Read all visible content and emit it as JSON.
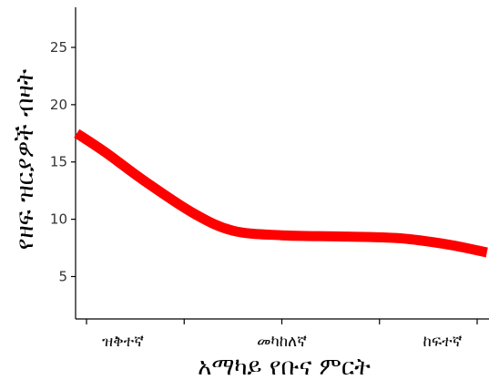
{
  "chart_data": {
    "type": "line",
    "title": "",
    "xlabel": "አማካይ የቡና ምርት",
    "ylabel": "የዘፍ ዝርያዎች ብዛት",
    "categories": [
      "ዝቅተኛ",
      "መካከለኛ",
      "ከፍተኛ"
    ],
    "y_ticks": [
      5,
      10,
      15,
      20,
      25
    ],
    "ylim": [
      1.3,
      28.5
    ],
    "grid": false,
    "legend": "none",
    "series": [
      {
        "color": "#ff0000",
        "x": [
          0.95,
          1.1,
          1.3,
          1.55,
          1.75,
          2.0,
          2.3,
          2.6,
          2.85,
          3.05
        ],
        "values": [
          17.5,
          15.8,
          13.3,
          10.5,
          9.0,
          8.6,
          8.5,
          8.35,
          7.8,
          7.1
        ]
      }
    ]
  }
}
